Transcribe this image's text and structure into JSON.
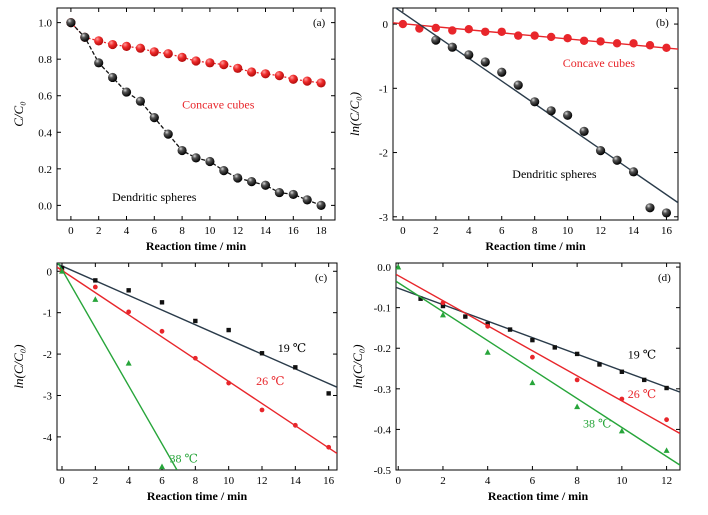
{
  "chart_data": [
    {
      "type": "scatter",
      "panel_label": "(a)",
      "xlabel": "Reaction time / min",
      "ylabel": "C/C₀",
      "xlim": [
        -1,
        19
      ],
      "ylim": [
        -0.08,
        1.08
      ],
      "xticks": [
        "0",
        "2",
        "4",
        "6",
        "8",
        "10",
        "12",
        "14",
        "16",
        "18"
      ],
      "yticks": [
        "0.0",
        "0.2",
        "0.4",
        "0.6",
        "0.8",
        "1.0"
      ],
      "series": [
        {
          "name": "Concave cubes",
          "color": "#e8262b",
          "marker": "dot",
          "connect": "dotted",
          "x": [
            0,
            1,
            2,
            3,
            4,
            5,
            6,
            7,
            8,
            9,
            10,
            11,
            12,
            13,
            14,
            15,
            16,
            17,
            18
          ],
          "y": [
            1.0,
            0.92,
            0.9,
            0.88,
            0.87,
            0.86,
            0.84,
            0.83,
            0.81,
            0.79,
            0.78,
            0.77,
            0.75,
            0.73,
            0.72,
            0.71,
            0.69,
            0.68,
            0.67
          ]
        },
        {
          "name": "Dendritic spheres",
          "color": "#111111",
          "marker": "ball",
          "connect": "dashed",
          "x": [
            0,
            1,
            2,
            3,
            4,
            5,
            6,
            7,
            8,
            9,
            10,
            11,
            12,
            13,
            14,
            15,
            16,
            17,
            18
          ],
          "y": [
            1.0,
            0.92,
            0.78,
            0.7,
            0.62,
            0.57,
            0.48,
            0.39,
            0.3,
            0.26,
            0.24,
            0.19,
            0.15,
            0.13,
            0.11,
            0.07,
            0.06,
            0.03,
            0.0
          ]
        }
      ],
      "annotations": [
        {
          "text": "Concave cubes",
          "color": "#e8262b",
          "x": 10.6,
          "y": 0.53
        },
        {
          "text": "Dendritic spheres",
          "color": "#000000",
          "x": 6.0,
          "y": 0.025
        }
      ]
    },
    {
      "type": "scatter",
      "panel_label": "(b)",
      "xlabel": "Reaction time / min",
      "ylabel": "ln(C/C₀)",
      "xlim": [
        -0.6,
        16.7
      ],
      "ylim": [
        -3.05,
        0.25
      ],
      "xticks": [
        "0",
        "2",
        "4",
        "6",
        "8",
        "10",
        "12",
        "14",
        "16"
      ],
      "yticks": [
        "0",
        "-1",
        "-2",
        "-3"
      ],
      "series": [
        {
          "name": "Concave cubes",
          "color": "#e8262b",
          "marker": "dot",
          "x": [
            0,
            1,
            2,
            3,
            4,
            5,
            6,
            7,
            8,
            9,
            10,
            11,
            12,
            13,
            14,
            15,
            16
          ],
          "y": [
            0,
            -0.07,
            -0.06,
            -0.1,
            -0.08,
            -0.12,
            -0.12,
            -0.18,
            -0.18,
            -0.2,
            -0.22,
            -0.26,
            -0.27,
            -0.3,
            -0.3,
            -0.33,
            -0.37
          ],
          "fit": [
            [
              -0.6,
              0.02
            ],
            [
              16.7,
              -0.39
            ]
          ]
        },
        {
          "name": "Dendritic spheres",
          "color": "#111111",
          "marker": "ball",
          "x": [
            2,
            3,
            4,
            5,
            6,
            7,
            8,
            9,
            10,
            11,
            12,
            13,
            14,
            15,
            16
          ],
          "y": [
            -0.25,
            -0.36,
            -0.48,
            -0.59,
            -0.75,
            -0.95,
            -1.21,
            -1.35,
            -1.42,
            -1.67,
            -1.97,
            -2.12,
            -2.3,
            -2.86,
            -2.94
          ],
          "fit": [
            [
              -0.6,
              0.28
            ],
            [
              16.7,
              -2.78
            ]
          ]
        }
      ],
      "annotations": [
        {
          "text": "Concave cubes",
          "color": "#e8262b",
          "x": 11.9,
          "y": -0.67
        },
        {
          "text": "Dendritic spheres",
          "color": "#000000",
          "x": 9.2,
          "y": -2.4
        }
      ]
    },
    {
      "type": "scatter",
      "panel_label": "(c)",
      "xlabel": "Reaction time / min",
      "ylabel": "ln(C/C₀)",
      "xlim": [
        -0.3,
        16.5
      ],
      "ylim": [
        -4.8,
        0.2
      ],
      "xticks": [
        "0",
        "2",
        "4",
        "6",
        "8",
        "10",
        "12",
        "14",
        "16"
      ],
      "yticks": [
        "0",
        "-1",
        "-2",
        "-3",
        "-4"
      ],
      "series": [
        {
          "name": "19 ℃",
          "color": "#111111",
          "marker": "square",
          "x": [
            0,
            2,
            4,
            6,
            8,
            10,
            12,
            14,
            16
          ],
          "y": [
            0.08,
            -0.22,
            -0.46,
            -0.75,
            -1.2,
            -1.42,
            -1.98,
            -2.32,
            -2.95
          ],
          "fit": [
            [
              -0.3,
              0.18
            ],
            [
              16.5,
              -2.8
            ]
          ]
        },
        {
          "name": "26 ℃",
          "color": "#e8262b",
          "marker": "dot",
          "x": [
            0,
            2,
            4,
            6,
            8,
            10,
            12,
            14,
            16
          ],
          "y": [
            0.0,
            -0.38,
            -0.98,
            -1.45,
            -2.1,
            -2.7,
            -3.35,
            -3.72,
            -4.25
          ],
          "fit": [
            [
              -0.3,
              0.1
            ],
            [
              16.5,
              -4.4
            ]
          ]
        },
        {
          "name": "38 ℃",
          "color": "#27a53a",
          "marker": "triangle",
          "x": [
            0,
            2,
            4,
            6
          ],
          "y": [
            0.0,
            -0.68,
            -2.22,
            -4.72
          ],
          "fit": [
            [
              -0.3,
              0.25
            ],
            [
              6.9,
              -4.8
            ]
          ]
        }
      ],
      "annotations": [
        {
          "text": "19 ℃",
          "color": "#000000",
          "x": 13.8,
          "y": -1.95
        },
        {
          "text": "26 ℃",
          "color": "#e8262b",
          "x": 12.5,
          "y": -2.75
        },
        {
          "text": "38 ℃",
          "color": "#27a53a",
          "x": 7.3,
          "y": -4.62
        }
      ]
    },
    {
      "type": "scatter",
      "panel_label": "(d)",
      "xlabel": "Reaction time / min",
      "ylabel": "ln(C/C₀)",
      "xlim": [
        -0.1,
        12.6
      ],
      "ylim": [
        -0.5,
        0.01
      ],
      "xticks": [
        "0",
        "2",
        "4",
        "6",
        "8",
        "10",
        "12"
      ],
      "yticks": [
        "0.0",
        "-0.1",
        "-0.2",
        "-0.3",
        "-0.4",
        "-0.5"
      ],
      "series": [
        {
          "name": "19 ℃",
          "color": "#111111",
          "marker": "square",
          "x": [
            1,
            2,
            3,
            4,
            5,
            6,
            7,
            8,
            9,
            10,
            11,
            12
          ],
          "y": [
            -0.078,
            -0.096,
            -0.122,
            -0.14,
            -0.154,
            -0.18,
            -0.198,
            -0.214,
            -0.24,
            -0.258,
            -0.278,
            -0.298
          ],
          "fit": [
            [
              -0.1,
              -0.05
            ],
            [
              12.6,
              -0.308
            ]
          ]
        },
        {
          "name": "26 ℃",
          "color": "#e8262b",
          "marker": "dot",
          "x": [
            2,
            4,
            6,
            8,
            10,
            12
          ],
          "y": [
            -0.088,
            -0.146,
            -0.222,
            -0.278,
            -0.325,
            -0.376
          ],
          "fit": [
            [
              -0.1,
              -0.018
            ],
            [
              12.6,
              -0.41
            ]
          ]
        },
        {
          "name": "38 ℃",
          "color": "#27a53a",
          "marker": "triangle",
          "x": [
            0,
            2,
            4,
            6,
            8,
            10,
            12
          ],
          "y": [
            0.0,
            -0.118,
            -0.21,
            -0.285,
            -0.344,
            -0.404,
            -0.452
          ],
          "fit": [
            [
              -0.1,
              -0.035
            ],
            [
              12.6,
              -0.488
            ]
          ]
        }
      ],
      "annotations": [
        {
          "text": "19 ℃",
          "color": "#000000",
          "x": 10.9,
          "y": -0.225
        },
        {
          "text": "26 ℃",
          "color": "#e8262b",
          "x": 10.9,
          "y": -0.322
        },
        {
          "text": "38 ℃",
          "color": "#27a53a",
          "x": 8.9,
          "y": -0.395
        }
      ]
    }
  ]
}
